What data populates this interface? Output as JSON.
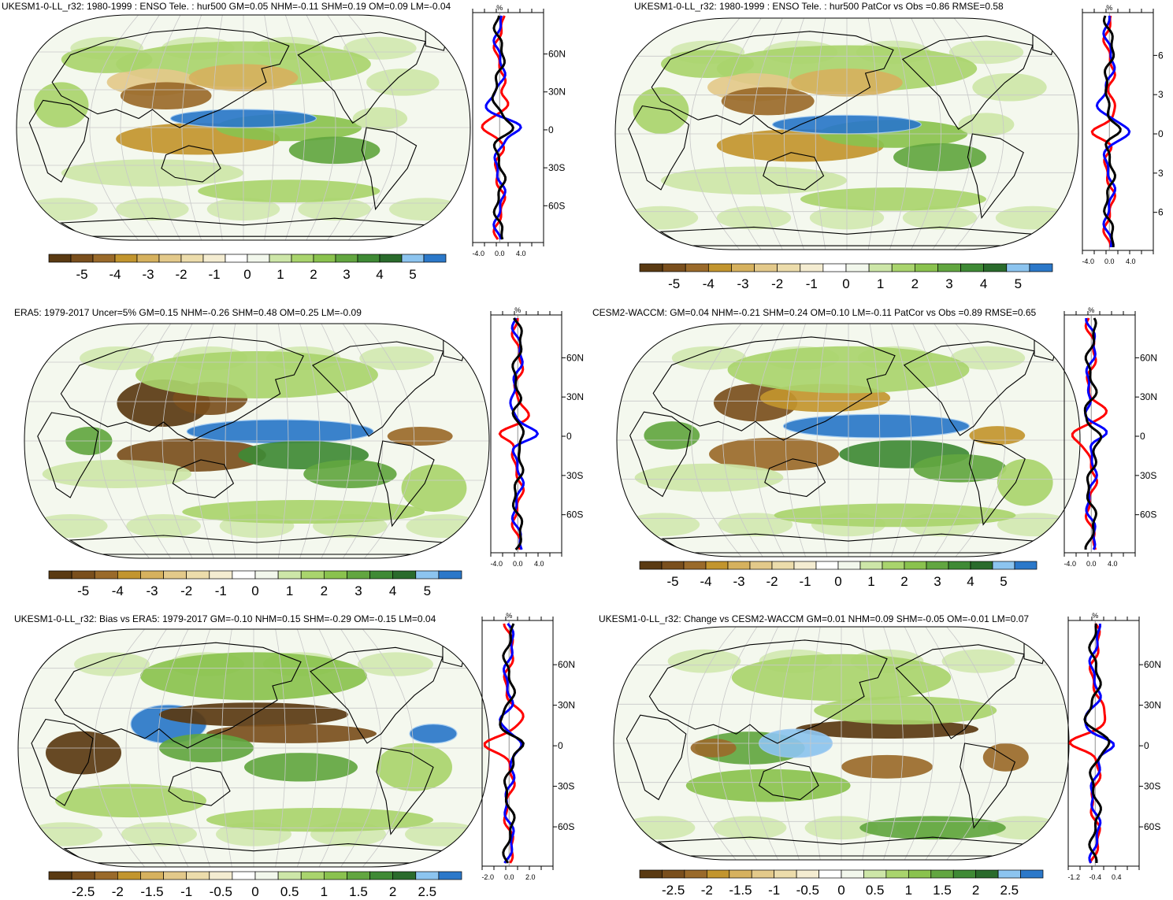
{
  "colors": {
    "diverging": [
      "#5a3a12",
      "#7a4f1d",
      "#9a6a2a",
      "#c2952e",
      "#d6b15e",
      "#e3c98a",
      "#ecdcab",
      "#f4ecd1",
      "#ffffff",
      "#f2f7ec",
      "#cde6a8",
      "#a9d46d",
      "#8ac24e",
      "#62a640",
      "#3f8a35",
      "#2a6b2c",
      "#8cc4ef",
      "#2b78c9"
    ],
    "model_line": "#0000ff",
    "obs_line": "#ff0000",
    "diff_line": "#000000",
    "coast": "#000000",
    "grid": "#c8c8c8"
  },
  "panels": [
    {
      "title": "UKESM1-0-LL_r32: 1980-1999 : ENSO Tele. : hur500 GM=0.05 NHM=-0.11 SHM=0.19 OM=0.09 LM=-0.04",
      "colorbar_ticks": [
        "-5",
        "-4",
        "-3",
        "-2",
        "-1",
        "0",
        "1",
        "2",
        "3",
        "4",
        "5"
      ],
      "profile_unit": "%",
      "profile_lat_ticks": [
        "60N",
        "30N",
        "0",
        "30S",
        "60S"
      ],
      "profile_x_ticks": [
        "-4.0",
        "0.0",
        "4.0"
      ]
    },
    {
      "title": "UKESM1-0-LL_r32: 1980-1999 : ENSO Tele. : hur500 PatCor vs Obs =0.86 RMSE=0.58",
      "colorbar_ticks": [
        "-5",
        "-4",
        "-3",
        "-2",
        "-1",
        "0",
        "1",
        "2",
        "3",
        "4",
        "5"
      ],
      "profile_unit": "%",
      "profile_lat_ticks": [
        "6",
        "3",
        "0",
        "3",
        "6"
      ],
      "profile_x_ticks": [
        "-4.0",
        "0.0",
        "4.0"
      ]
    },
    {
      "title": "ERA5: 1979-2017 Uncer=5% GM=0.15 NHM=-0.26 SHM=0.48 OM=0.25 LM=-0.09",
      "colorbar_ticks": [
        "-5",
        "-4",
        "-3",
        "-2",
        "-1",
        "0",
        "1",
        "2",
        "3",
        "4",
        "5"
      ],
      "profile_unit": "%",
      "profile_lat_ticks": [
        "60N",
        "30N",
        "0",
        "30S",
        "60S"
      ],
      "profile_x_ticks": [
        "-4.0",
        "0.0",
        "4.0"
      ]
    },
    {
      "title": "CESM2-WACCM: GM=0.04 NHM=-0.21 SHM=0.24 OM=0.10 LM=-0.11 PatCor vs Obs =0.89 RMSE=0.65",
      "colorbar_ticks": [
        "-5",
        "-4",
        "-3",
        "-2",
        "-1",
        "0",
        "1",
        "2",
        "3",
        "4",
        "5"
      ],
      "profile_unit": "%",
      "profile_lat_ticks": [
        "60N",
        "30N",
        "0",
        "30S",
        "60S"
      ],
      "profile_x_ticks": [
        "-4.0",
        "0.0",
        "4.0"
      ]
    },
    {
      "title": "UKESM1-0-LL_r32: Bias vs ERA5: 1979-2017 GM=-0.10 NHM=0.15 SHM=-0.29 OM=-0.15 LM=0.04",
      "colorbar_ticks": [
        "-2.5",
        "-2",
        "-1.5",
        "-1",
        "-0.5",
        "0",
        "0.5",
        "1",
        "1.5",
        "2",
        "2.5"
      ],
      "profile_unit": "%",
      "profile_lat_ticks": [
        "60N",
        "30N",
        "0",
        "30S",
        "60S"
      ],
      "profile_x_ticks": [
        "-2.0",
        "0.0",
        "2.0"
      ]
    },
    {
      "title": "UKESM1-0-LL_r32: Change vs CESM2-WACCM GM=0.01 NHM=0.09 SHM=-0.05 OM=-0.01 LM=0.07",
      "colorbar_ticks": [
        "-2.5",
        "-2",
        "-1.5",
        "-1",
        "-0.5",
        "0",
        "0.5",
        "1",
        "1.5",
        "2",
        "2.5"
      ],
      "profile_unit": "%",
      "profile_lat_ticks": [
        "60N",
        "30N",
        "0",
        "30S",
        "60S"
      ],
      "profile_x_ticks": [
        "-1.2",
        "-0.4",
        "0.4"
      ]
    }
  ]
}
